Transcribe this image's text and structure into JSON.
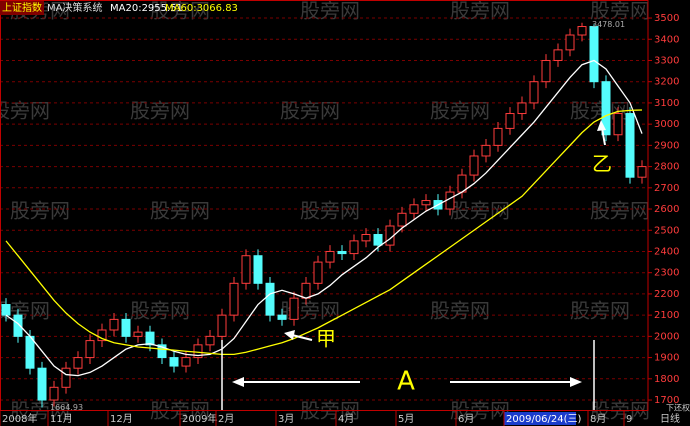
{
  "chart_data": {
    "type": "candlestick",
    "title": "上证指数",
    "subtitle": "MA决策系统",
    "watermark": "股旁网",
    "period": "日线",
    "adjust": "下还权",
    "annotations": [
      "甲",
      "乙",
      "A"
    ],
    "categories": [
      "2008年",
      null,
      null,
      null,
      "11月",
      null,
      null,
      null,
      null,
      "12月",
      null,
      null,
      null,
      null,
      null,
      "2009年",
      null,
      null,
      "2月",
      null,
      null,
      null,
      null,
      "3月",
      null,
      null,
      null,
      null,
      "4月",
      null,
      null,
      null,
      null,
      "5月",
      null,
      null,
      null,
      null,
      "6月",
      null,
      null,
      null,
      "2009/06/24(三)",
      null,
      null,
      null,
      null,
      null,
      null,
      "8月",
      null,
      null,
      "9",
      null
    ],
    "open": [
      2150,
      2100,
      2000,
      1850,
      1700,
      1760,
      1850,
      1900,
      1980,
      2030,
      2080,
      2000,
      2020,
      1960,
      1900,
      1860,
      1900,
      1960,
      2000,
      2100,
      2250,
      2380,
      2250,
      2100,
      2080,
      2180,
      2250,
      2350,
      2400,
      2390,
      2450,
      2480,
      2430,
      2520,
      2580,
      2620,
      2640,
      2600,
      2680,
      2760,
      2850,
      2900,
      2980,
      3050,
      3100,
      3200,
      3300,
      3350,
      3420,
      3460,
      3200,
      2950,
      3050,
      2750
    ],
    "close": [
      2100,
      2000,
      1850,
      1700,
      1760,
      1850,
      1900,
      1980,
      2030,
      2080,
      2000,
      2020,
      1960,
      1900,
      1860,
      1900,
      1960,
      2000,
      2100,
      2250,
      2380,
      2250,
      2100,
      2080,
      2180,
      2250,
      2350,
      2400,
      2390,
      2450,
      2480,
      2430,
      2520,
      2580,
      2620,
      2640,
      2600,
      2680,
      2760,
      2850,
      2900,
      2980,
      3050,
      3100,
      3200,
      3300,
      3350,
      3420,
      3460,
      3200,
      2950,
      3050,
      2750,
      2800
    ],
    "low": [
      2070,
      1970,
      1820,
      1664.93,
      1670,
      1730,
      1820,
      1870,
      1950,
      2000,
      1970,
      1970,
      1930,
      1870,
      1830,
      1830,
      1870,
      1930,
      1970,
      2070,
      2220,
      2220,
      2070,
      2050,
      2050,
      2150,
      2220,
      2320,
      2360,
      2360,
      2420,
      2400,
      2400,
      2490,
      2550,
      2590,
      2570,
      2570,
      2650,
      2730,
      2820,
      2870,
      2950,
      3020,
      3070,
      3170,
      3270,
      3320,
      3390,
      3170,
      2920,
      2920,
      2720,
      2720
    ],
    "high": [
      2180,
      2130,
      2030,
      1880,
      1790,
      1880,
      1930,
      2010,
      2060,
      2110,
      2110,
      2050,
      2050,
      1990,
      1930,
      1930,
      1990,
      2030,
      2130,
      2280,
      2410,
      2410,
      2280,
      2130,
      2210,
      2280,
      2380,
      2430,
      2430,
      2480,
      2510,
      2510,
      2550,
      2610,
      2650,
      2670,
      2670,
      2710,
      2790,
      2880,
      2930,
      3010,
      3080,
      3130,
      3230,
      3330,
      3380,
      3450,
      3478.01,
      3470,
      3230,
      3080,
      3080,
      2830
    ],
    "up_color": "#ff3c3c",
    "down_color": "#54fcfc",
    "series": [
      {
        "name": "MA20:2955.51",
        "color": "#ffffff",
        "values": [
          2100,
          2060,
          2000,
          1930,
          1860,
          1820,
          1815,
          1830,
          1860,
          1900,
          1940,
          1960,
          1965,
          1950,
          1930,
          1915,
          1910,
          1915,
          1940,
          1990,
          2070,
          2150,
          2200,
          2217,
          2200,
          2180,
          2200,
          2240,
          2290,
          2330,
          2370,
          2420,
          2460,
          2510,
          2550,
          2590,
          2620,
          2650,
          2680,
          2720,
          2770,
          2830,
          2890,
          2950,
          3010,
          3080,
          3150,
          3220,
          3280,
          3300,
          3260,
          3180,
          3100,
          2955.51
        ]
      },
      {
        "name": "MA60:3066.83",
        "color": "#ffff00",
        "values": [
          2450,
          2380,
          2310,
          2240,
          2170,
          2110,
          2060,
          2020,
          1990,
          1970,
          1960,
          1950,
          1945,
          1940,
          1935,
          1930,
          1925,
          1920,
          1915,
          1915,
          1925,
          1940,
          1955,
          1970,
          1990,
          2015,
          2040,
          2070,
          2100,
          2130,
          2160,
          2190,
          2220,
          2260,
          2300,
          2340,
          2380,
          2420,
          2460,
          2500,
          2540,
          2580,
          2620,
          2660,
          2720,
          2780,
          2840,
          2900,
          2960,
          3010,
          3040,
          3060,
          3065,
          3066.83
        ]
      }
    ],
    "ylim": [
      1653,
      3585
    ],
    "yticks": [
      1700,
      1800,
      1900,
      2000,
      2100,
      2200,
      2300,
      2400,
      2500,
      2600,
      2700,
      2800,
      2900,
      3000,
      3100,
      3200,
      3300,
      3400,
      3500
    ],
    "grid": true
  }
}
